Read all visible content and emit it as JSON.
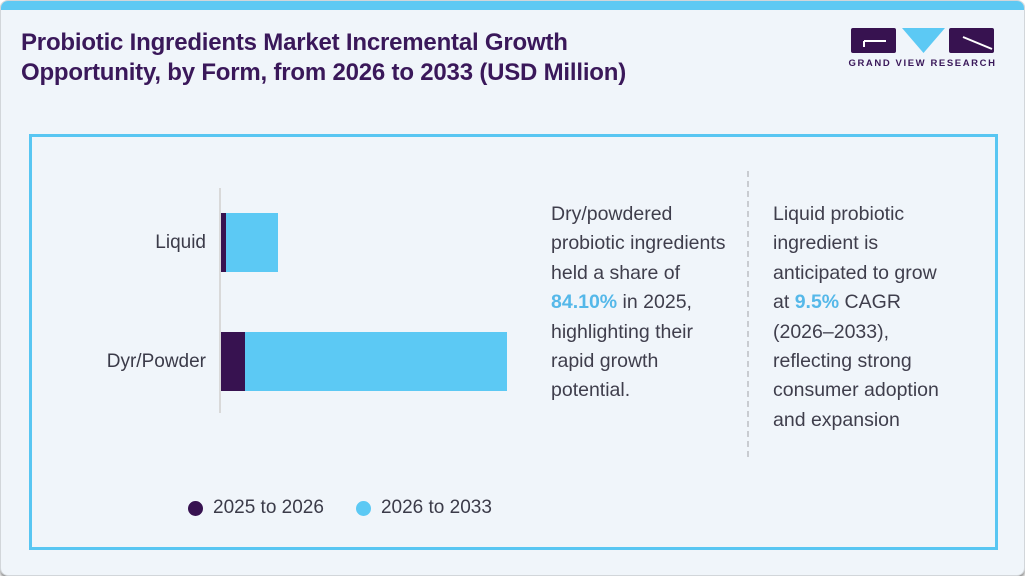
{
  "header": {
    "title_line1": "Probiotic Ingredients Market Incremental Growth",
    "title_line2": "Opportunity, by Form, from 2026 to 2033 (USD Million)",
    "logo_text": "GRAND VIEW RESEARCH"
  },
  "colors": {
    "accent_blue": "#5CC9F4",
    "dark_purple": "#371250",
    "title_purple": "#3A185A",
    "highlight_blue": "#55B8E9",
    "body_text": "#3F3E4C",
    "panel_border": "#58C6F2",
    "axis_gray": "#D9D9D9",
    "background": "#F0F5FA"
  },
  "chart_data": {
    "type": "bar",
    "orientation": "horizontal",
    "stacked": true,
    "title": "Probiotic Ingredients Market Incremental Growth Opportunity, by Form, from 2026 to 2033 (USD Million)",
    "categories": [
      "Liquid",
      "Dyr/Powder"
    ],
    "series": [
      {
        "name": "2025 to 2026",
        "color": "#371250",
        "values": [
          5,
          24
        ]
      },
      {
        "name": "2026 to 2033",
        "color": "#5CC9F4",
        "values": [
          52,
          262
        ]
      }
    ],
    "units": "relative bar length in px; no numeric axis shown in figure",
    "xlabel": "",
    "ylabel": "",
    "axis_ticks": "hidden",
    "grid": false,
    "legend_position": "bottom-left"
  },
  "insight_left": {
    "lines": [
      "Dry/powdered",
      "probiotic ingredients",
      "held a share of"
    ],
    "highlight": "84.10%",
    "highlight_suffix": " in 2025,",
    "lines_after": [
      "highlighting their",
      "rapid growth",
      "potential."
    ]
  },
  "insight_right": {
    "lines": [
      "Liquid probiotic",
      "ingredient is",
      "anticipated to grow"
    ],
    "highlight_prefix": "at ",
    "highlight": "9.5%",
    "highlight_suffix": " CAGR",
    "lines_after": [
      "(2026–2033),",
      "reflecting strong",
      "consumer adoption",
      "and expansion"
    ]
  }
}
